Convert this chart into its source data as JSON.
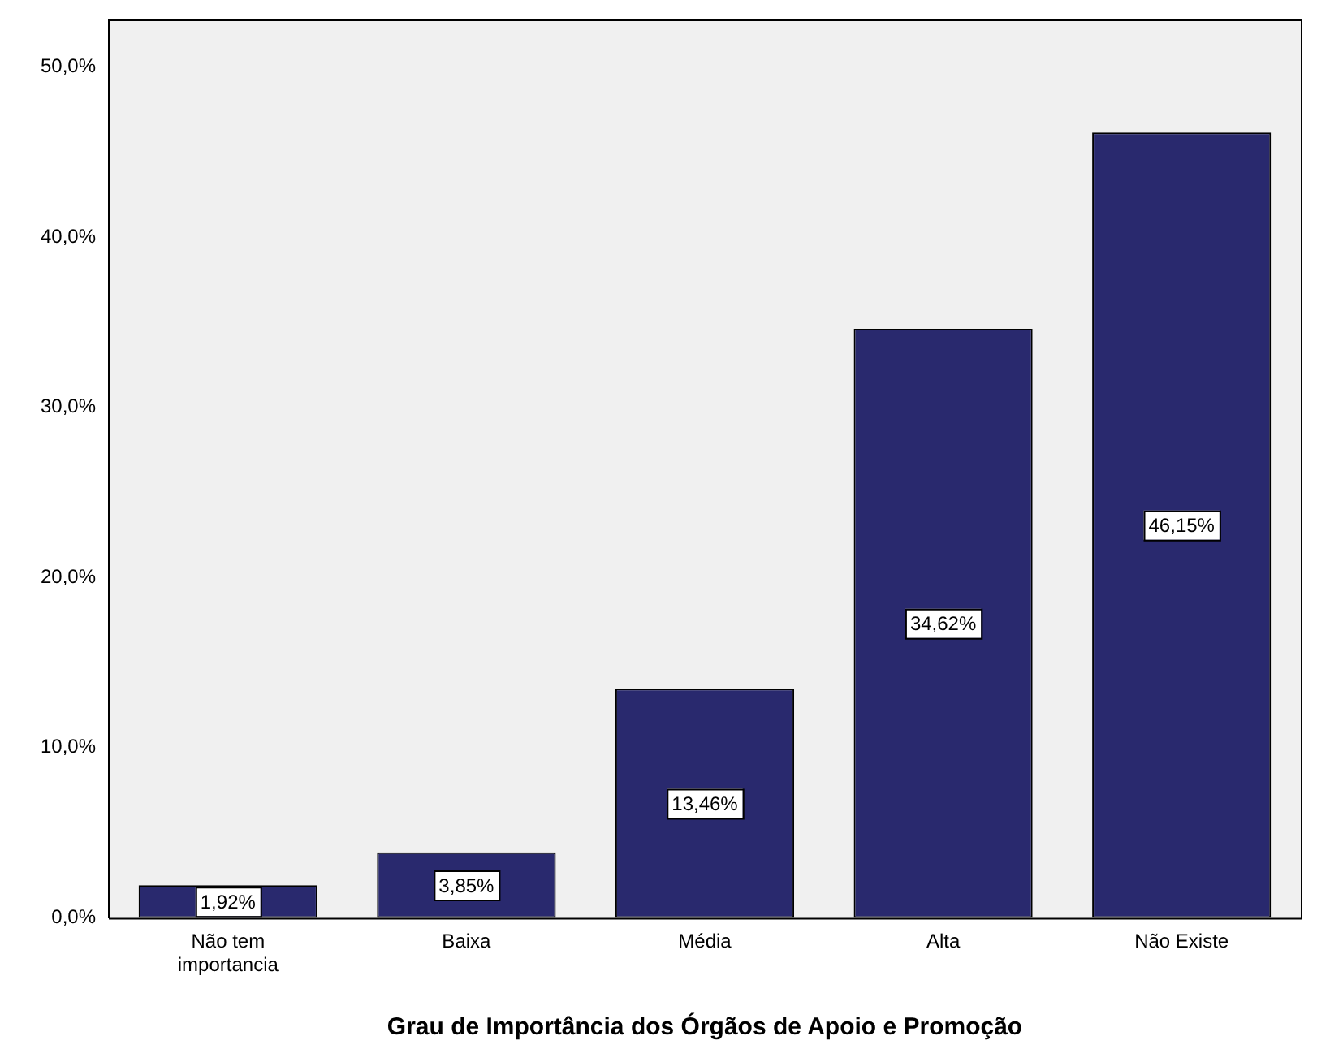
{
  "chart_data": {
    "type": "bar",
    "xlabel": "Grau de Importância dos Órgãos de Apoio e Promoção",
    "categories": [
      "Não tem importancia",
      "Baixa",
      "Média",
      "Alta",
      "Não Existe"
    ],
    "values": [
      1.92,
      3.85,
      13.46,
      34.62,
      46.15
    ],
    "value_labels": [
      "1,92%",
      "3,85%",
      "13,46%",
      "34,62%",
      "46,15%"
    ],
    "color": "#29296e",
    "ylim": [
      0,
      52.8
    ],
    "yticks": [
      {
        "value": 0,
        "label": "0,0%"
      },
      {
        "value": 10,
        "label": "10,0%"
      },
      {
        "value": 20,
        "label": "20,0%"
      },
      {
        "value": 30,
        "label": "30,0%"
      },
      {
        "value": 40,
        "label": "40,0%"
      },
      {
        "value": 50,
        "label": "50,0%"
      }
    ],
    "grid": false,
    "legend": false
  }
}
